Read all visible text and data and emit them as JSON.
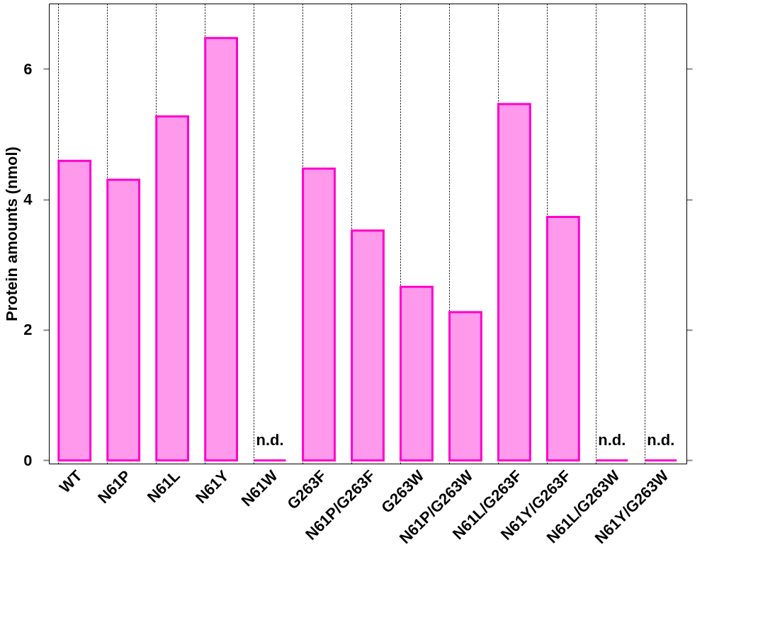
{
  "chart_data": {
    "type": "bar",
    "ylabel": "Protein amounts (nmol)",
    "categories": [
      "WT",
      "N61P",
      "N61L",
      "N61Y",
      "N61W",
      "G263F",
      "N61P/G263F",
      "G263W",
      "N61P/G263W",
      "N61L/G263F",
      "N61Y/G263F",
      "N61L/G263W",
      "N61Y/G263W"
    ],
    "series": [
      {
        "color": "#ff00cc",
        "values": [
          4.59,
          4.3,
          5.27,
          6.47,
          0,
          4.47,
          3.52,
          2.66,
          2.27,
          5.46,
          3.73,
          0,
          0
        ]
      }
    ],
    "ylim": [
      -0.05,
      7
    ],
    "yticks": [
      0,
      2,
      4,
      6
    ],
    "grid": "x",
    "annotations": [
      {
        "text": "n.d.",
        "x": "N61W",
        "y": 0
      },
      {
        "text": "n.d.",
        "x": "N61L/G263W",
        "y": 0
      },
      {
        "text": "n.d.",
        "x": "N61Y/G263W",
        "y": 0
      }
    ]
  }
}
